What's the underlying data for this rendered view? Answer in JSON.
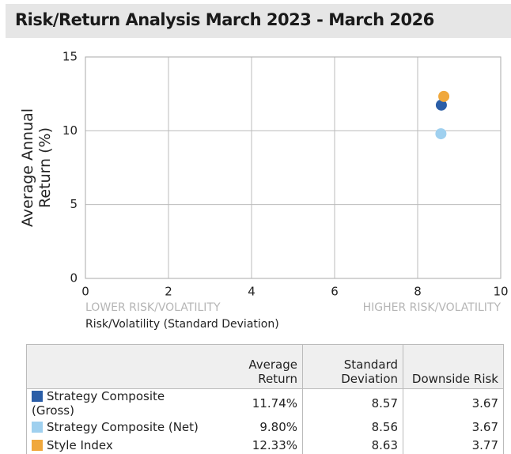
{
  "header": {
    "title": "Risk/Return Analysis March 2023 - March 2026"
  },
  "chart_data": {
    "type": "scatter",
    "ylabel": [
      "Average Annual",
      "Return (%)"
    ],
    "xlabel": "Risk/Volatility (Standard Deviation)",
    "annotations": {
      "left": "LOWER RISK/VOLATILITY",
      "right": "HIGHER RISK/VOLATILITY"
    },
    "xlim": [
      0,
      10
    ],
    "xticks": [
      0,
      2,
      4,
      6,
      8,
      10
    ],
    "ylim": [
      0,
      15
    ],
    "yticks": [
      0,
      5,
      10,
      15
    ],
    "grid": true,
    "series": [
      {
        "name": "Strategy Composite (Gross)",
        "color": "#2b5ea7",
        "x": [
          8.57
        ],
        "values": [
          11.74
        ]
      },
      {
        "name": "Strategy Composite (Net)",
        "color": "#9fd0ef",
        "x": [
          8.56
        ],
        "values": [
          9.8
        ]
      },
      {
        "name": "Style Index",
        "color": "#f0a83c",
        "x": [
          8.63
        ],
        "values": [
          12.33
        ]
      }
    ]
  },
  "table": {
    "columns": [
      "Average Return",
      "Standard Deviation",
      "Downside Risk"
    ],
    "rows": [
      [
        "11.74%",
        "8.57",
        "3.67"
      ],
      [
        "9.80%",
        "8.56",
        "3.67"
      ],
      [
        "12.33%",
        "8.63",
        "3.77"
      ]
    ]
  }
}
